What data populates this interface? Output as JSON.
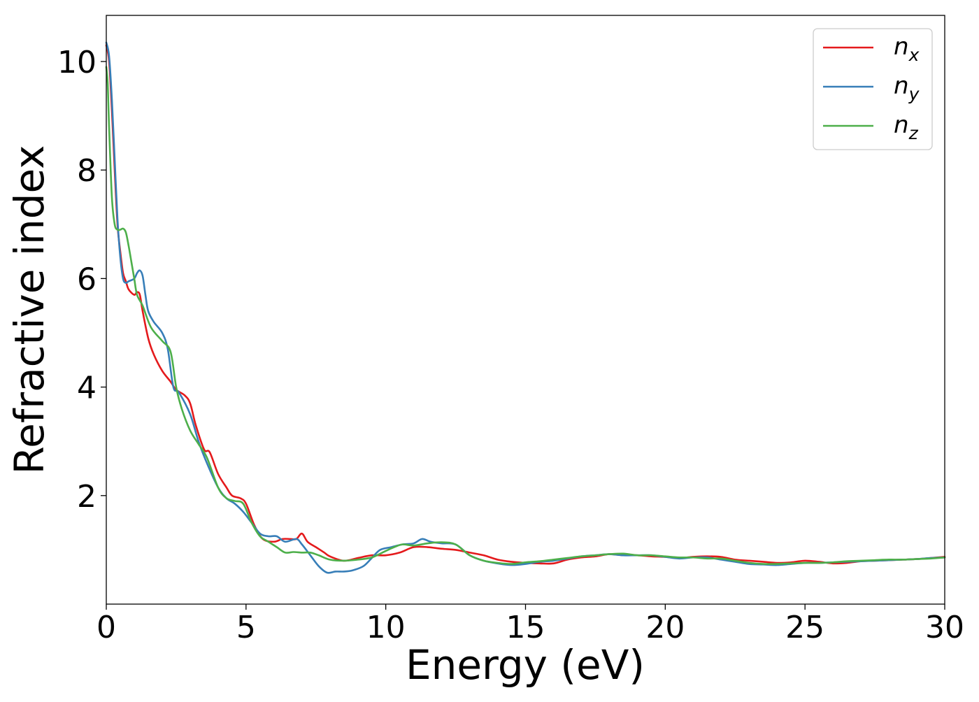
{
  "chart_data": {
    "type": "line",
    "xlabel": "Energy (eV)",
    "ylabel": "Refractive index",
    "xlim": [
      0,
      30
    ],
    "ylim": [
      0,
      10.85
    ],
    "xticks": [
      0,
      5,
      10,
      15,
      20,
      25,
      30
    ],
    "xtick_labels": [
      "0",
      "5",
      "10",
      "15",
      "20",
      "25",
      "30"
    ],
    "yticks": [
      2,
      4,
      6,
      8,
      10
    ],
    "ytick_labels": [
      "2",
      "4",
      "6",
      "8",
      "10"
    ],
    "grid": false,
    "legend_position": "top-right",
    "series": [
      {
        "name": "n_x",
        "label_base": "n",
        "label_sub": "x",
        "color": "#e41a1c",
        "x": [
          0,
          0.1,
          0.2,
          0.3,
          0.4,
          0.5,
          0.6,
          0.7,
          0.8,
          1.0,
          1.1,
          1.2,
          1.3,
          1.5,
          1.7,
          2.0,
          2.3,
          2.5,
          2.8,
          3.0,
          3.2,
          3.5,
          3.7,
          4.0,
          4.3,
          4.5,
          4.8,
          5.0,
          5.3,
          5.6,
          6.0,
          6.3,
          6.6,
          6.8,
          7.0,
          7.2,
          7.5,
          7.8,
          8.0,
          8.5,
          9.0,
          9.5,
          10.0,
          10.5,
          11.0,
          11.5,
          12.0,
          12.5,
          13.0,
          13.5,
          14.0,
          14.5,
          15.0,
          15.5,
          16.0,
          16.5,
          17.0,
          17.5,
          18.0,
          18.5,
          19.0,
          19.5,
          20.0,
          20.5,
          21.0,
          21.5,
          22.0,
          22.5,
          23.0,
          23.5,
          24.0,
          24.5,
          25.0,
          25.5,
          26.0,
          26.5,
          27.0,
          27.5,
          28.0,
          28.5,
          29.0,
          29.5,
          30.0
        ],
        "y": [
          10.3,
          10.0,
          9.1,
          8.0,
          7.0,
          6.5,
          6.1,
          5.95,
          5.8,
          5.7,
          5.75,
          5.7,
          5.4,
          4.9,
          4.6,
          4.3,
          4.1,
          3.95,
          3.85,
          3.7,
          3.3,
          2.85,
          2.8,
          2.4,
          2.15,
          2.0,
          1.95,
          1.85,
          1.45,
          1.2,
          1.15,
          1.2,
          1.2,
          1.2,
          1.3,
          1.15,
          1.05,
          0.95,
          0.88,
          0.8,
          0.85,
          0.9,
          0.9,
          0.95,
          1.05,
          1.05,
          1.02,
          1.0,
          0.95,
          0.9,
          0.82,
          0.78,
          0.76,
          0.75,
          0.75,
          0.82,
          0.86,
          0.88,
          0.92,
          0.9,
          0.9,
          0.88,
          0.87,
          0.85,
          0.87,
          0.88,
          0.87,
          0.82,
          0.8,
          0.78,
          0.76,
          0.77,
          0.8,
          0.78,
          0.75,
          0.76,
          0.79,
          0.8,
          0.81,
          0.82,
          0.83,
          0.85,
          0.87
        ]
      },
      {
        "name": "n_y",
        "label_base": "n",
        "label_sub": "y",
        "color": "#377eb8",
        "x": [
          0,
          0.1,
          0.2,
          0.3,
          0.4,
          0.5,
          0.6,
          0.7,
          0.8,
          1.0,
          1.1,
          1.2,
          1.3,
          1.4,
          1.5,
          1.7,
          2.0,
          2.2,
          2.4,
          2.6,
          3.0,
          3.3,
          3.6,
          4.0,
          4.3,
          4.6,
          4.9,
          5.2,
          5.5,
          5.8,
          6.1,
          6.4,
          6.8,
          7.0,
          7.3,
          7.6,
          7.9,
          8.2,
          8.5,
          8.8,
          9.2,
          9.5,
          9.8,
          10.2,
          10.6,
          11.0,
          11.3,
          11.6,
          12.0,
          12.5,
          13.0,
          13.5,
          14.0,
          14.5,
          15.0,
          15.5,
          16.0,
          16.5,
          17.0,
          17.5,
          18.0,
          18.5,
          19.0,
          19.5,
          20.0,
          20.5,
          21.0,
          21.5,
          22.0,
          22.5,
          23.0,
          23.5,
          24.0,
          24.5,
          25.0,
          25.5,
          26.0,
          26.5,
          27.0,
          27.5,
          28.0,
          28.5,
          29.0,
          29.5,
          30.0
        ],
        "y": [
          10.35,
          10.1,
          9.3,
          8.2,
          7.1,
          6.4,
          6.0,
          5.92,
          5.95,
          6.0,
          6.1,
          6.15,
          6.05,
          5.7,
          5.4,
          5.2,
          5.0,
          4.7,
          4.0,
          3.9,
          3.5,
          3.0,
          2.6,
          2.15,
          1.95,
          1.85,
          1.7,
          1.5,
          1.3,
          1.25,
          1.25,
          1.15,
          1.2,
          1.1,
          0.9,
          0.7,
          0.58,
          0.6,
          0.6,
          0.62,
          0.7,
          0.85,
          1.0,
          1.05,
          1.1,
          1.12,
          1.2,
          1.15,
          1.12,
          1.1,
          0.9,
          0.8,
          0.75,
          0.72,
          0.74,
          0.78,
          0.8,
          0.84,
          0.88,
          0.9,
          0.92,
          0.9,
          0.9,
          0.9,
          0.87,
          0.84,
          0.86,
          0.86,
          0.82,
          0.78,
          0.74,
          0.73,
          0.72,
          0.74,
          0.76,
          0.76,
          0.77,
          0.78,
          0.79,
          0.8,
          0.81,
          0.82,
          0.83,
          0.85,
          0.86
        ]
      },
      {
        "name": "n_z",
        "label_base": "n",
        "label_sub": "z",
        "color": "#4daf4a",
        "x": [
          0,
          0.05,
          0.1,
          0.2,
          0.3,
          0.4,
          0.5,
          0.6,
          0.7,
          0.8,
          0.9,
          1.0,
          1.1,
          1.3,
          1.6,
          2.0,
          2.3,
          2.5,
          2.7,
          3.0,
          3.3,
          3.6,
          4.0,
          4.3,
          4.6,
          4.9,
          5.2,
          5.5,
          5.8,
          6.1,
          6.4,
          6.7,
          7.0,
          7.3,
          7.6,
          8.0,
          8.5,
          9.0,
          9.5,
          10.0,
          10.3,
          10.6,
          11.0,
          11.5,
          12.0,
          12.5,
          13.0,
          13.5,
          14.0,
          14.5,
          15.0,
          15.5,
          16.0,
          16.5,
          17.0,
          17.5,
          18.0,
          18.5,
          19.0,
          19.5,
          20.0,
          20.5,
          21.0,
          21.5,
          22.0,
          22.5,
          23.0,
          23.5,
          24.0,
          24.5,
          25.0,
          25.5,
          26.0,
          26.5,
          27.0,
          27.5,
          28.0,
          28.5,
          29.0,
          29.5,
          30.0
        ],
        "y": [
          9.9,
          9.6,
          8.8,
          7.5,
          7.0,
          6.9,
          6.9,
          6.92,
          6.85,
          6.6,
          6.3,
          6.0,
          5.7,
          5.5,
          5.1,
          4.85,
          4.65,
          4.0,
          3.6,
          3.2,
          2.95,
          2.7,
          2.15,
          1.95,
          1.9,
          1.85,
          1.5,
          1.25,
          1.15,
          1.05,
          0.95,
          0.96,
          0.95,
          0.95,
          0.9,
          0.82,
          0.8,
          0.82,
          0.86,
          0.98,
          1.05,
          1.1,
          1.08,
          1.12,
          1.14,
          1.1,
          0.9,
          0.8,
          0.76,
          0.74,
          0.77,
          0.79,
          0.82,
          0.85,
          0.88,
          0.9,
          0.92,
          0.93,
          0.9,
          0.9,
          0.88,
          0.86,
          0.86,
          0.84,
          0.84,
          0.8,
          0.76,
          0.74,
          0.74,
          0.75,
          0.76,
          0.76,
          0.77,
          0.79,
          0.8,
          0.81,
          0.82,
          0.82,
          0.83,
          0.84,
          0.86
        ]
      }
    ]
  }
}
